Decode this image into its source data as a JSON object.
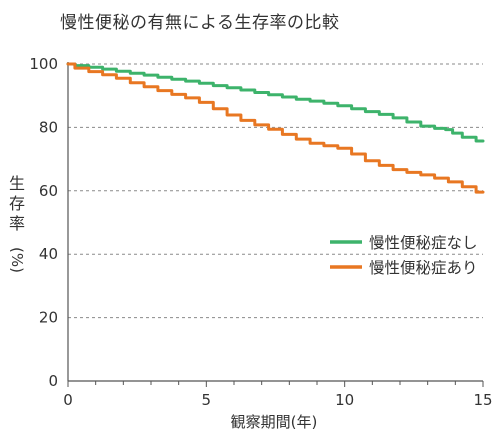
{
  "chart_data": {
    "type": "line",
    "title": "慢性便秘の有無による生存率の比較",
    "xlabel": "観察期間(年)",
    "ylabel": {
      "main": "生存率",
      "unit": "(%)"
    },
    "xlim": [
      0,
      15
    ],
    "ylim": [
      0,
      100
    ],
    "x_ticks": [
      0,
      5,
      10,
      15
    ],
    "y_ticks": [
      0,
      20,
      40,
      60,
      80,
      100
    ],
    "grid": "horizontal dashed",
    "legend_position": "right",
    "series": [
      {
        "name": "慢性便秘症なし",
        "color": "#3db36b",
        "x": [
          0,
          0.5,
          1,
          1.5,
          2,
          2.5,
          3,
          3.5,
          4,
          4.5,
          5,
          5.5,
          6,
          6.5,
          7,
          7.5,
          8,
          8.5,
          9,
          9.5,
          10,
          10.5,
          11,
          11.5,
          12,
          12.5,
          13,
          13.5,
          13.8,
          14,
          14.5,
          15
        ],
        "y": [
          100,
          99.5,
          99,
          98.4,
          97.7,
          97.1,
          96.5,
          95.8,
          95.2,
          94.6,
          93.9,
          93.2,
          92.5,
          91.8,
          91.0,
          90.3,
          89.6,
          88.9,
          88.3,
          87.6,
          86.8,
          85.9,
          85.0,
          84.1,
          83.0,
          81.7,
          80.4,
          79.7,
          79.3,
          78.2,
          76.9,
          75.7
        ]
      },
      {
        "name": "慢性便秘症あり",
        "color": "#e87722",
        "x": [
          0,
          0.5,
          1,
          1.5,
          2,
          2.5,
          3,
          3.5,
          4,
          4.5,
          5,
          5.5,
          6,
          6.5,
          7,
          7.5,
          8,
          8.5,
          9,
          9.5,
          10,
          10.5,
          11,
          11.5,
          12,
          12.5,
          13,
          13.5,
          14,
          14.5,
          15
        ],
        "y": [
          100,
          98.7,
          97.6,
          96.6,
          95.5,
          94.1,
          92.8,
          91.6,
          90.4,
          89.3,
          87.9,
          85.9,
          83.9,
          82.2,
          80.8,
          79.4,
          77.8,
          76.3,
          75.0,
          74.2,
          73.4,
          71.6,
          69.5,
          68.0,
          66.7,
          65.8,
          65.0,
          64.0,
          62.8,
          61.3,
          59.6
        ]
      }
    ]
  }
}
